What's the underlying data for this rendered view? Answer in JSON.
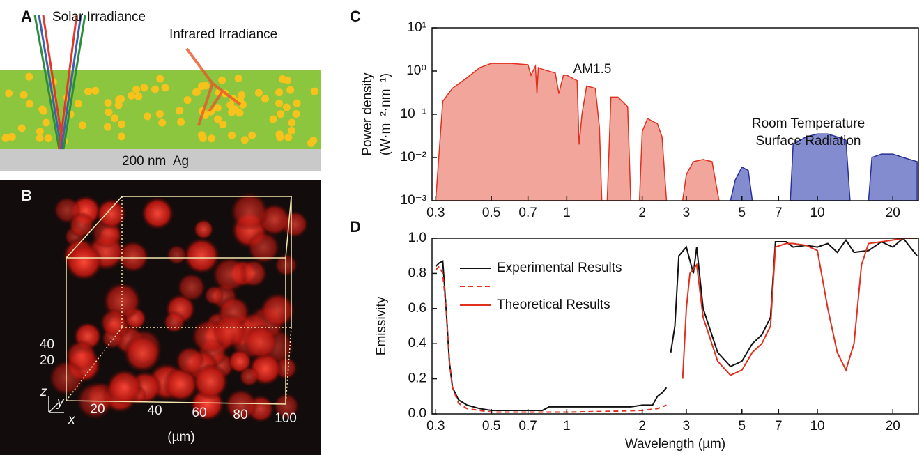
{
  "panel_a": {
    "letter": "A",
    "solar_label": "Solar Irradiance",
    "infrared_label": "Infrared Irradiance",
    "substrate_label": "200 nm  Ag"
  },
  "panel_b": {
    "letter": "B",
    "x_ticks": [
      20,
      40,
      60,
      80,
      100
    ],
    "z_ticks": [
      40,
      20
    ],
    "unit_label": "(µm)",
    "axis_x": "x",
    "axis_y": "y",
    "axis_z": "z"
  },
  "chart_data": [
    {
      "type": "area",
      "panel_label": "C",
      "xscale": "log",
      "yscale": "log",
      "y_label": [
        "Power density",
        "(W·m⁻²·nm⁻¹)"
      ],
      "annotations": [
        "AM1.5",
        "Room Temperature",
        "Surface Radiation"
      ],
      "xlim": [
        0.29,
        25.3
      ],
      "ylim": [
        0.001,
        10
      ],
      "xticks": [
        0.3,
        0.5,
        0.7,
        1,
        2,
        3,
        5,
        7,
        10,
        20
      ],
      "yticks": [
        {
          "value": 10,
          "label": "10¹"
        },
        {
          "value": 1,
          "label": "10⁰"
        },
        {
          "value": 0.1,
          "label": "10⁻¹"
        },
        {
          "value": 0.01,
          "label": "10⁻²"
        },
        {
          "value": 0.001,
          "label": "10⁻³"
        }
      ],
      "series": [
        {
          "color": "#e0301e",
          "fill": "#f0958a",
          "x": [
            0.3,
            0.32,
            0.35,
            0.4,
            0.45,
            0.5,
            0.6,
            0.7,
            0.72,
            0.75,
            0.76,
            0.77,
            0.8,
            0.9,
            0.93,
            0.95,
            0.97,
            1.0,
            1.1,
            1.12,
            1.15,
            1.2,
            1.3,
            1.35,
            1.38,
            1.45,
            1.5,
            1.6,
            1.75,
            1.8,
            1.95,
            2.0,
            2.1,
            2.3,
            2.4,
            2.5,
            2.7,
            2.9,
            3.0,
            3.2,
            3.5,
            3.8,
            4.05
          ],
          "values": [
            0.001,
            0.2,
            0.4,
            0.7,
            1.2,
            1.5,
            1.5,
            1.4,
            0.8,
            1.3,
            0.3,
            1.2,
            1.1,
            0.9,
            0.3,
            0.5,
            0.8,
            0.8,
            0.6,
            0.02,
            0.1,
            0.45,
            0.4,
            0.05,
            0.001,
            0.001,
            0.25,
            0.25,
            0.15,
            0.001,
            0.001,
            0.04,
            0.08,
            0.06,
            0.03,
            0.001,
            null,
            0.001,
            0.004,
            0.008,
            0.009,
            0.008,
            0.001
          ]
        },
        {
          "color": "#2a2f9a",
          "fill": "#6f78c8",
          "x": [
            4.5,
            4.7,
            5.0,
            5.3,
            5.5,
            6.5,
            7.8,
            8,
            9,
            10,
            11,
            12,
            13,
            13.5,
            15,
            16,
            16.5,
            18,
            20,
            22,
            25
          ],
          "values": [
            0.001,
            0.003,
            0.006,
            0.005,
            0.001,
            null,
            0.001,
            0.02,
            0.03,
            0.035,
            0.035,
            0.03,
            0.025,
            0.001,
            null,
            0.001,
            0.01,
            0.012,
            0.012,
            0.01,
            0.008
          ]
        }
      ]
    },
    {
      "type": "line",
      "panel_label": "D",
      "xscale": "log",
      "x_label": "Wavelength (µm)",
      "y_label": "Emissivity",
      "xlim": [
        0.29,
        25.3
      ],
      "ylim": [
        0,
        1
      ],
      "xticks": [
        0.3,
        0.5,
        0.7,
        1,
        2,
        3,
        5,
        7,
        10,
        20
      ],
      "yticks": [
        {
          "value": 0,
          "label": "0.0"
        },
        0.2,
        0.4,
        0.6,
        0.8,
        {
          "value": 1,
          "label": "1.0"
        }
      ],
      "series": [
        {
          "name": "Experimental Results",
          "color": "#111111",
          "dash": [
            false,
            false
          ],
          "x": [
            0.3,
            0.31,
            0.32,
            0.33,
            0.34,
            0.35,
            0.37,
            0.4,
            0.45,
            0.5,
            0.6,
            0.7,
            0.8,
            0.85,
            0.9,
            1.0,
            1.2,
            1.5,
            1.8,
            2.0,
            2.2,
            2.3,
            2.4,
            2.5,
            2.55,
            2.6,
            2.7,
            2.8,
            3.0,
            3.2,
            3.3,
            3.5,
            4,
            4.5,
            5,
            5.5,
            6,
            6.5,
            6.8,
            7.5,
            8,
            9,
            10,
            11,
            12,
            13,
            14,
            16,
            18,
            20,
            22,
            25
          ],
          "values": [
            0.84,
            0.86,
            0.87,
            0.6,
            0.3,
            0.15,
            0.08,
            0.05,
            0.03,
            0.02,
            0.02,
            0.02,
            0.02,
            0.04,
            0.04,
            0.04,
            0.04,
            0.04,
            0.04,
            0.05,
            0.05,
            0.1,
            0.12,
            0.15,
            null,
            0.35,
            0.5,
            0.9,
            0.95,
            0.8,
            0.95,
            0.6,
            0.35,
            0.27,
            0.3,
            0.4,
            0.45,
            0.55,
            0.98,
            0.98,
            0.95,
            0.96,
            0.95,
            0.97,
            0.92,
            0.99,
            0.92,
            0.93,
            0.98,
            0.95,
            1.0,
            0.9
          ]
        },
        {
          "name": "Theoretical Results",
          "color": "#e0301e",
          "dash": [
            true,
            false
          ],
          "x": [
            0.3,
            0.31,
            0.32,
            0.33,
            0.34,
            0.35,
            0.37,
            0.4,
            0.5,
            0.8,
            1.0,
            1.5,
            2.0,
            2.3,
            2.5,
            2.7,
            2.9,
            3.0,
            3.1,
            3.3,
            3.5,
            4,
            4.5,
            5,
            5.5,
            6,
            6.5,
            6.8,
            7.5,
            8,
            9,
            10,
            11,
            12,
            13,
            14,
            15,
            16,
            18,
            20,
            22,
            25
          ],
          "values": [
            0.82,
            0.84,
            0.8,
            0.6,
            0.3,
            0.15,
            0.06,
            0.03,
            0.01,
            0.01,
            0.01,
            0.015,
            0.02,
            0.03,
            0.05,
            null,
            0.2,
            0.6,
            0.8,
            0.85,
            0.55,
            0.3,
            0.22,
            0.25,
            0.35,
            0.4,
            0.5,
            0.95,
            0.97,
            0.97,
            0.96,
            0.93,
            0.6,
            0.35,
            0.25,
            0.4,
            0.85,
            0.97,
            0.98,
            0.99,
            1.0,
            1.0
          ]
        }
      ]
    }
  ]
}
